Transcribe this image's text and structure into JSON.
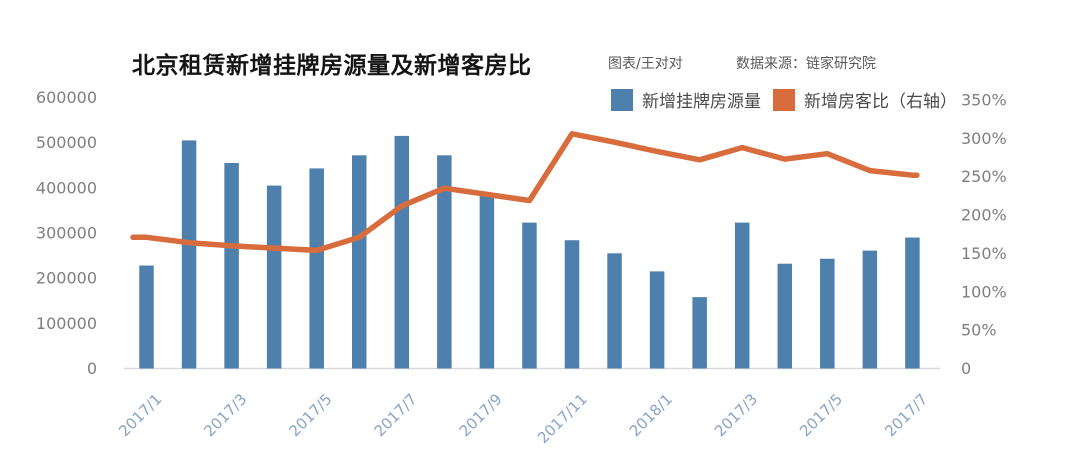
{
  "header": {
    "title": "北京租赁新增挂牌房源量及新增客房比",
    "credit": "图表/王对对",
    "source": "数据来源：链家研究院"
  },
  "legend": {
    "items": [
      {
        "label": "新增挂牌房源量",
        "color": "#4d80ad",
        "marker": "square"
      },
      {
        "label": "新增房客比（右轴）",
        "color": "#d96c3c",
        "marker": "square"
      }
    ]
  },
  "chart_data": {
    "type": "bar+line",
    "n_points": 19,
    "series": [
      {
        "name": "新增挂牌房源量",
        "type": "bar",
        "axis": "left",
        "color": "#4d80ad",
        "values": [
          228000,
          505000,
          455000,
          405000,
          443000,
          472000,
          515000,
          472000,
          385000,
          323000,
          284000,
          255000,
          215000,
          158000,
          323000,
          232000,
          243000,
          261000,
          290000
        ]
      },
      {
        "name": "新增房客比（右轴）",
        "type": "line",
        "axis": "right",
        "color": "#d96c3c",
        "values_percent": [
          171,
          164,
          160,
          157,
          154,
          171,
          212,
          235,
          227,
          219,
          306,
          295,
          283,
          272,
          288,
          273,
          280,
          258,
          252
        ]
      }
    ],
    "x_ticks": [
      {
        "bar_index": 0,
        "label": "2017/1"
      },
      {
        "bar_index": 2,
        "label": "2017/3"
      },
      {
        "bar_index": 4,
        "label": "2017/5"
      },
      {
        "bar_index": 6,
        "label": "2017/7"
      },
      {
        "bar_index": 8,
        "label": "2017/9"
      },
      {
        "bar_index": 10,
        "label": "2017/11"
      },
      {
        "bar_index": 12,
        "label": "2018/1"
      },
      {
        "bar_index": 14,
        "label": "2017/3"
      },
      {
        "bar_index": 16,
        "label": "2017/5"
      },
      {
        "bar_index": 18,
        "label": "2017/7"
      }
    ],
    "left_axis": {
      "min": 0,
      "max": 600000,
      "tick_labels": [
        "600000",
        "500000",
        "400000",
        "300000",
        "200000",
        "100000",
        "0"
      ],
      "tick_values": [
        600000,
        500000,
        400000,
        300000,
        200000,
        100000,
        0
      ]
    },
    "right_axis": {
      "min": 0,
      "max": 350,
      "tick_labels": [
        "350%",
        "300%",
        "250%",
        "200%",
        "150%",
        "100%",
        "50%",
        "0"
      ],
      "tick_values": [
        350,
        300,
        250,
        200,
        150,
        100,
        50,
        0
      ]
    },
    "grid": false,
    "legend_position": "top"
  },
  "colors": {
    "bar": "#4d80ad",
    "line": "#d96c3c",
    "axis_label": "#7f7f7f",
    "x_tick_label": "#8aa4c6",
    "axis_line": "#d9d9d9",
    "title": "#141414",
    "subtitle": "#595959",
    "legend_text": "#4a4a4a",
    "background": "#ffffff"
  }
}
